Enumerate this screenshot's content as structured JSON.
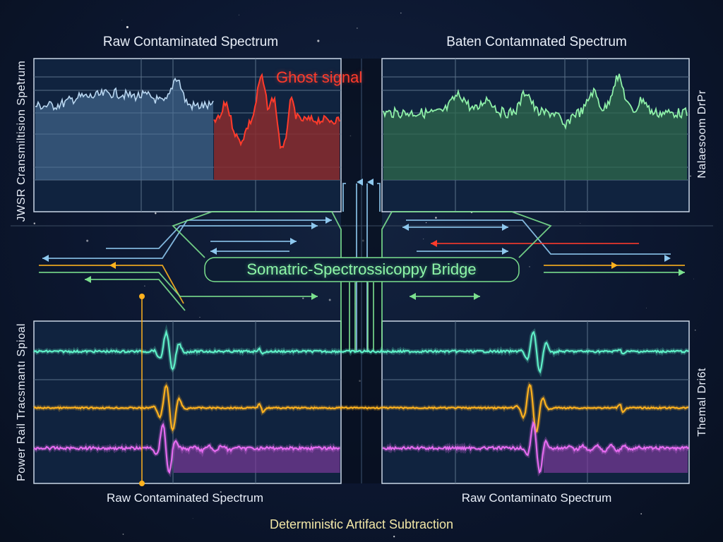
{
  "top_left_panel": {
    "title": "Raw Contaminated Spectrum",
    "annotation": "Ghost signal"
  },
  "top_right_panel": {
    "title": "Baten Contamnated Spectrum"
  },
  "left_axis_top": "JWSR Cransmiltision Spetrum",
  "right_axis_top": "Nalaesoom DrPr",
  "bridge_label": "Somatric-Spectrossicoppy Bridge",
  "bottom_left_panel": {
    "title": "Raw Contaminated Spectrum"
  },
  "bottom_right_panel": {
    "title": "Raw Contaminato Spectrum"
  },
  "left_axis_bottom": "Power Rail Tracsmantı Spioal",
  "right_axis_bottom": "Themal Dri6t",
  "caption": "Deterministic Artifact Subtraction",
  "colors": {
    "raw_spectrum": "#b8d6f0",
    "ghost": "#ff3b2b",
    "clean_spectrum": "#8ef0a8",
    "trace_teal": "#5ff0c8",
    "trace_orange": "#ffb21e",
    "trace_magenta": "#e56bf0",
    "flow_blue": "#8ec8ee",
    "flow_green": "#7be08e"
  }
}
